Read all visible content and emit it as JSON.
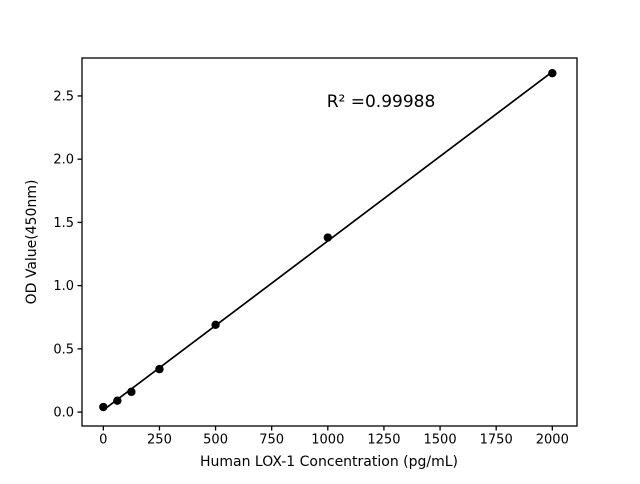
{
  "figure": {
    "background_color": "#ffffff",
    "foreground_color": "#000000"
  },
  "chart_data": {
    "type": "scatter",
    "title": "",
    "xlabel": "Human LOX-1 Concentration (pg/mL)",
    "ylabel": "OD Value(450nm)",
    "annotation": "R² =0.99988",
    "x": [
      0,
      62.5,
      125,
      250,
      500,
      1000,
      2000
    ],
    "y": [
      0.04,
      0.09,
      0.16,
      0.34,
      0.69,
      1.38,
      2.68
    ],
    "trendline": {
      "x": [
        0,
        2000
      ],
      "y": [
        0.016,
        2.691
      ]
    },
    "x_ticks": [
      0,
      250,
      500,
      750,
      1000,
      1250,
      1500,
      1750,
      2000
    ],
    "x_tick_labels": [
      "0",
      "250",
      "500",
      "750",
      "1000",
      "1250",
      "1500",
      "1750",
      "2000"
    ],
    "y_ticks": [
      0.0,
      0.5,
      1.0,
      1.5,
      2.0,
      2.5
    ],
    "y_tick_labels": [
      "0.0",
      "0.5",
      "1.0",
      "1.5",
      "2.0",
      "2.5"
    ],
    "xlim": [
      -95,
      2110
    ],
    "ylim": [
      -0.11,
      2.8
    ],
    "grid": false,
    "legend": null,
    "marker_color": "#000000",
    "line_color": "#000000"
  }
}
